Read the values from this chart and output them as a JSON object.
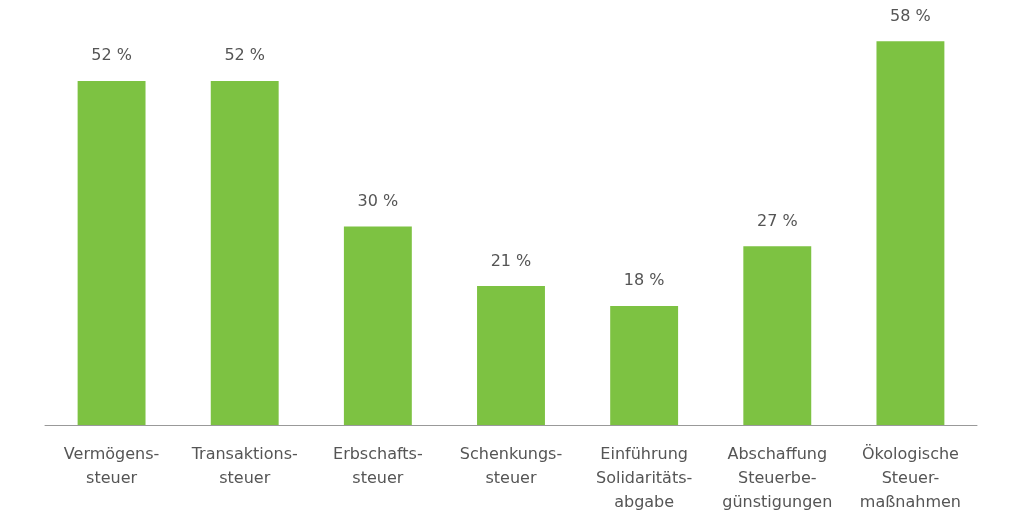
{
  "chart_data": {
    "type": "bar",
    "categories": [
      "Vermögens-\nsteuer",
      "Transaktions-\nsteuer",
      "Erbschafts-\nsteuer",
      "Schenkungs-\nsteuer",
      "Einführung\nSolidaritäts-\nabgabe",
      "Abschaffung\nSteuerbe-\ngünstigungen",
      "Ökologische\nSteuer-\nmaßnahmen"
    ],
    "values": [
      52,
      52,
      30,
      21,
      18,
      27,
      58
    ],
    "value_labels": [
      "52 %",
      "52 %",
      "30 %",
      "21 %",
      "18 %",
      "27 %",
      "58 %"
    ],
    "color": "#7dc242"
  }
}
